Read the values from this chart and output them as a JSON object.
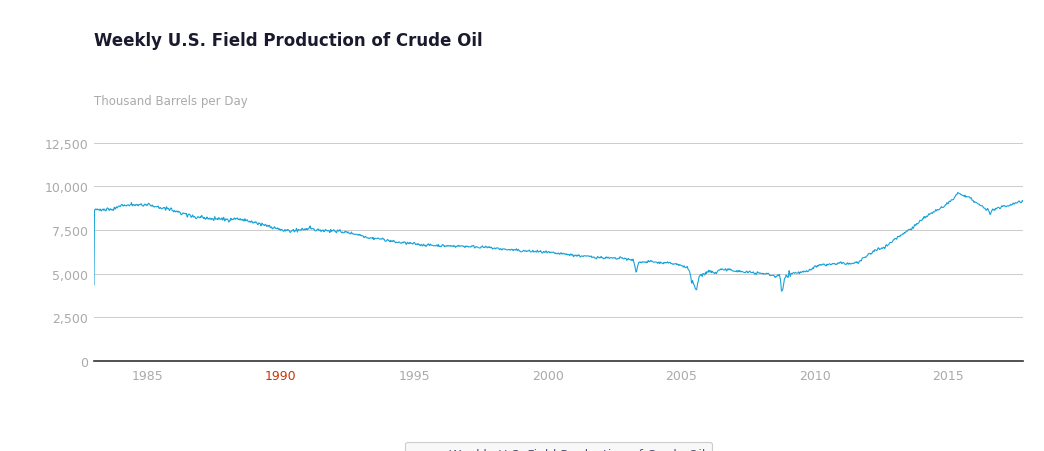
{
  "title": "Weekly U.S. Field Production of Crude Oil",
  "ylabel": "Thousand Barrels per Day",
  "line_color": "#1aa3d9",
  "legend_label": "Weekly U.S. Field Production of Crude Oil",
  "background_color": "#ffffff",
  "grid_color": "#cccccc",
  "yticks": [
    0,
    2500,
    5000,
    7500,
    10000,
    12500
  ],
  "xticks": [
    1985,
    1990,
    1995,
    2000,
    2005,
    2010,
    2015
  ],
  "xlim": [
    1983.0,
    2017.8
  ],
  "ylim": [
    0,
    13500
  ],
  "title_color": "#1a1a2e",
  "ylabel_color": "#aaaaaa",
  "tick_color": "#aaaaaa",
  "xlabel_1990_color": "#cc3300",
  "anchors": [
    [
      1983.0,
      8650
    ],
    [
      1983.3,
      8680
    ],
    [
      1983.7,
      8720
    ],
    [
      1984.0,
      8900
    ],
    [
      1984.3,
      8920
    ],
    [
      1984.7,
      8950
    ],
    [
      1985.0,
      8950
    ],
    [
      1985.3,
      8850
    ],
    [
      1985.7,
      8750
    ],
    [
      1986.0,
      8600
    ],
    [
      1986.5,
      8350
    ],
    [
      1987.0,
      8200
    ],
    [
      1987.5,
      8150
    ],
    [
      1988.0,
      8100
    ],
    [
      1988.3,
      8150
    ],
    [
      1988.7,
      8050
    ],
    [
      1989.0,
      7900
    ],
    [
      1989.5,
      7750
    ],
    [
      1990.0,
      7500
    ],
    [
      1990.2,
      7450
    ],
    [
      1990.5,
      7480
    ],
    [
      1991.0,
      7550
    ],
    [
      1991.3,
      7500
    ],
    [
      1991.7,
      7480
    ],
    [
      1992.0,
      7450
    ],
    [
      1992.3,
      7400
    ],
    [
      1992.7,
      7300
    ],
    [
      1993.0,
      7200
    ],
    [
      1993.3,
      7050
    ],
    [
      1993.7,
      7000
    ],
    [
      1994.0,
      6900
    ],
    [
      1994.3,
      6800
    ],
    [
      1994.7,
      6750
    ],
    [
      1995.0,
      6700
    ],
    [
      1995.3,
      6650
    ],
    [
      1995.7,
      6620
    ],
    [
      1996.0,
      6600
    ],
    [
      1996.3,
      6580
    ],
    [
      1996.7,
      6580
    ],
    [
      1997.0,
      6560
    ],
    [
      1997.3,
      6540
    ],
    [
      1997.7,
      6500
    ],
    [
      1998.0,
      6450
    ],
    [
      1998.3,
      6400
    ],
    [
      1998.7,
      6350
    ],
    [
      1999.0,
      6300
    ],
    [
      1999.3,
      6280
    ],
    [
      1999.7,
      6250
    ],
    [
      2000.0,
      6200
    ],
    [
      2000.3,
      6150
    ],
    [
      2000.7,
      6100
    ],
    [
      2001.0,
      6050
    ],
    [
      2001.3,
      6000
    ],
    [
      2001.7,
      5950
    ],
    [
      2002.0,
      5920
    ],
    [
      2002.3,
      5880
    ],
    [
      2002.6,
      5850
    ],
    [
      2002.8,
      5900
    ],
    [
      2003.0,
      5800
    ],
    [
      2003.2,
      5750
    ],
    [
      2003.3,
      5050
    ],
    [
      2003.4,
      5700
    ],
    [
      2003.6,
      5650
    ],
    [
      2003.8,
      5700
    ],
    [
      2004.0,
      5650
    ],
    [
      2004.3,
      5600
    ],
    [
      2004.5,
      5600
    ],
    [
      2004.7,
      5550
    ],
    [
      2005.0,
      5450
    ],
    [
      2005.2,
      5400
    ],
    [
      2005.55,
      4000
    ],
    [
      2005.65,
      4800
    ],
    [
      2005.8,
      5000
    ],
    [
      2005.9,
      5100
    ],
    [
      2006.0,
      5100
    ],
    [
      2006.1,
      5050
    ],
    [
      2006.2,
      5050
    ],
    [
      2006.3,
      5050
    ],
    [
      2006.4,
      5200
    ],
    [
      2006.5,
      5250
    ],
    [
      2006.6,
      5200
    ],
    [
      2006.7,
      5200
    ],
    [
      2006.8,
      5200
    ],
    [
      2006.9,
      5200
    ],
    [
      2007.0,
      5150
    ],
    [
      2007.3,
      5100
    ],
    [
      2007.7,
      5050
    ],
    [
      2008.0,
      5000
    ],
    [
      2008.2,
      4980
    ],
    [
      2008.4,
      4900
    ],
    [
      2008.5,
      4850
    ],
    [
      2008.6,
      4850
    ],
    [
      2008.7,
      4820
    ],
    [
      2008.75,
      3800
    ],
    [
      2008.85,
      4700
    ],
    [
      2009.0,
      5000
    ],
    [
      2009.3,
      5050
    ],
    [
      2009.7,
      5100
    ],
    [
      2010.0,
      5400
    ],
    [
      2010.3,
      5500
    ],
    [
      2010.5,
      5520
    ],
    [
      2010.7,
      5530
    ],
    [
      2011.0,
      5600
    ],
    [
      2011.2,
      5550
    ],
    [
      2011.4,
      5580
    ],
    [
      2011.5,
      5620
    ],
    [
      2011.7,
      5700
    ],
    [
      2012.0,
      6100
    ],
    [
      2012.3,
      6350
    ],
    [
      2012.7,
      6600
    ],
    [
      2013.0,
      7000
    ],
    [
      2013.3,
      7300
    ],
    [
      2013.7,
      7700
    ],
    [
      2014.0,
      8100
    ],
    [
      2014.2,
      8300
    ],
    [
      2014.4,
      8500
    ],
    [
      2014.5,
      8600
    ],
    [
      2014.6,
      8650
    ],
    [
      2014.8,
      8800
    ],
    [
      2015.0,
      9100
    ],
    [
      2015.1,
      9200
    ],
    [
      2015.2,
      9300
    ],
    [
      2015.3,
      9500
    ],
    [
      2015.35,
      9680
    ],
    [
      2015.4,
      9600
    ],
    [
      2015.5,
      9500
    ],
    [
      2015.6,
      9450
    ],
    [
      2015.7,
      9400
    ],
    [
      2015.8,
      9350
    ],
    [
      2015.9,
      9200
    ],
    [
      2016.0,
      9100
    ],
    [
      2016.1,
      9000
    ],
    [
      2016.2,
      8900
    ],
    [
      2016.3,
      8800
    ],
    [
      2016.4,
      8700
    ],
    [
      2016.5,
      8650
    ],
    [
      2016.55,
      8350
    ],
    [
      2016.65,
      8700
    ],
    [
      2016.7,
      8700
    ],
    [
      2016.8,
      8700
    ],
    [
      2016.9,
      8750
    ],
    [
      2017.0,
      8850
    ],
    [
      2017.2,
      8900
    ],
    [
      2017.4,
      9000
    ],
    [
      2017.6,
      9100
    ],
    [
      2017.8,
      9200
    ]
  ]
}
